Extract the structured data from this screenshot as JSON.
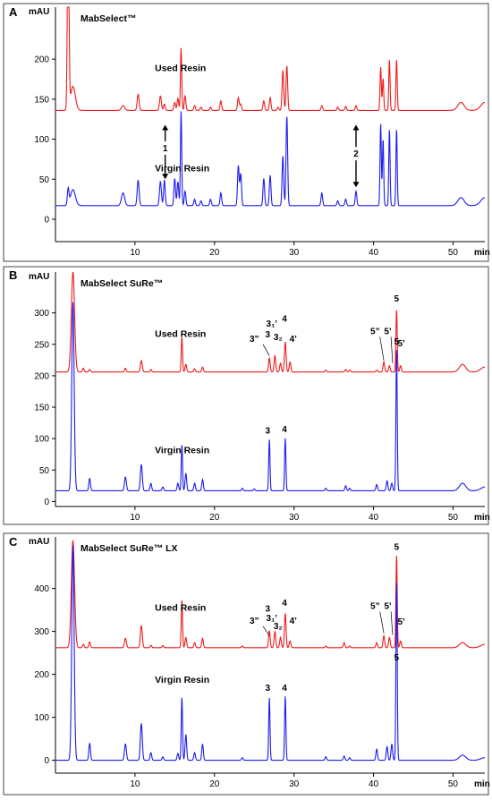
{
  "colors": {
    "used": "#ee1c1c",
    "virgin": "#1c1cee"
  },
  "chart_data": [
    {
      "type": "line",
      "panel": "A",
      "title": "MabSelect™",
      "ylabel": "mAU",
      "xlabel": "min",
      "xlim": [
        0,
        54
      ],
      "ylim": [
        -28,
        265
      ],
      "xticks": [
        10,
        20,
        30,
        40,
        50
      ],
      "yticks": [
        0,
        50,
        100,
        150,
        200
      ],
      "series": [
        {
          "name": "Used Resin",
          "color": "#ee1c1c",
          "baseline": 136,
          "label_x": 12.5,
          "label_y": 185,
          "peaks": [
            [
              1.6,
              250,
              0.1
            ],
            [
              2.2,
              30,
              0.3
            ],
            [
              8.5,
              6,
              0.2
            ],
            [
              10.4,
              20,
              0.12
            ],
            [
              13.2,
              18,
              0.12
            ],
            [
              13.7,
              8,
              0.1
            ],
            [
              15.0,
              10,
              0.1
            ],
            [
              15.4,
              15,
              0.1
            ],
            [
              15.8,
              78,
              0.08
            ],
            [
              16.3,
              18,
              0.1
            ],
            [
              17.5,
              6,
              0.1
            ],
            [
              18.3,
              4,
              0.1
            ],
            [
              19.5,
              4,
              0.1
            ],
            [
              20.8,
              12,
              0.1
            ],
            [
              23.0,
              16,
              0.1
            ],
            [
              23.3,
              8,
              0.1
            ],
            [
              26.2,
              12,
              0.1
            ],
            [
              27.0,
              16,
              0.1
            ],
            [
              28.0,
              4,
              0.1
            ],
            [
              28.6,
              50,
              0.1
            ],
            [
              29.1,
              56,
              0.1
            ],
            [
              33.5,
              6,
              0.1
            ],
            [
              35.5,
              4,
              0.1
            ],
            [
              36.5,
              5,
              0.1
            ],
            [
              37.8,
              6,
              0.1
            ],
            [
              40.9,
              54,
              0.08
            ],
            [
              41.2,
              40,
              0.08
            ],
            [
              42.0,
              64,
              0.08
            ],
            [
              42.9,
              64,
              0.08
            ],
            [
              51.0,
              10,
              0.4
            ],
            [
              54.0,
              10,
              0.5
            ]
          ]
        },
        {
          "name": "Virgin Resin",
          "color": "#1c1cee",
          "baseline": 17,
          "label_x": 12.5,
          "label_y": 60,
          "peaks": [
            [
              1.6,
              20,
              0.1
            ],
            [
              2.2,
              20,
              0.3
            ],
            [
              8.5,
              16,
              0.2
            ],
            [
              10.4,
              32,
              0.12
            ],
            [
              13.2,
              30,
              0.12
            ],
            [
              13.7,
              32,
              0.1
            ],
            [
              15.0,
              34,
              0.1
            ],
            [
              15.4,
              30,
              0.1
            ],
            [
              15.8,
              118,
              0.08
            ],
            [
              16.3,
              18,
              0.1
            ],
            [
              17.5,
              8,
              0.1
            ],
            [
              18.3,
              6,
              0.1
            ],
            [
              19.5,
              8,
              0.1
            ],
            [
              20.8,
              16,
              0.1
            ],
            [
              23.0,
              50,
              0.1
            ],
            [
              23.3,
              40,
              0.1
            ],
            [
              26.2,
              34,
              0.1
            ],
            [
              27.0,
              38,
              0.1
            ],
            [
              28.6,
              62,
              0.1
            ],
            [
              29.1,
              112,
              0.1
            ],
            [
              33.5,
              16,
              0.1
            ],
            [
              35.5,
              6,
              0.1
            ],
            [
              36.5,
              8,
              0.1
            ],
            [
              37.8,
              18,
              0.1
            ],
            [
              40.9,
              102,
              0.08
            ],
            [
              41.2,
              84,
              0.08
            ],
            [
              42.0,
              96,
              0.08
            ],
            [
              42.9,
              96,
              0.08
            ],
            [
              51.0,
              10,
              0.4
            ],
            [
              54.0,
              10,
              0.5
            ]
          ]
        }
      ],
      "annotations": [
        {
          "text": "1",
          "x": 13.8,
          "y_top": 118,
          "y_bottom": 50,
          "y_text": 85
        },
        {
          "text": "2",
          "x": 37.8,
          "y_top": 118,
          "y_bottom": 40,
          "y_text": 78
        }
      ]
    },
    {
      "type": "line",
      "panel": "B",
      "title": "MabSelect SuRe™",
      "ylabel": "mAU",
      "xlabel": "min",
      "xlim": [
        0,
        54
      ],
      "ylim": [
        -8,
        365
      ],
      "xticks": [
        10,
        20,
        30,
        40,
        50
      ],
      "yticks": [
        0,
        50,
        100,
        150,
        200,
        250,
        300
      ],
      "series": [
        {
          "name": "Used Resin",
          "color": "#ee1c1c",
          "baseline": 206,
          "label_x": 12.5,
          "label_y": 262,
          "peaks": [
            [
              2.2,
              160,
              0.2
            ],
            [
              3.5,
              6,
              0.1
            ],
            [
              4.3,
              4,
              0.1
            ],
            [
              8.8,
              6,
              0.1
            ],
            [
              10.8,
              18,
              0.12
            ],
            [
              12.0,
              4,
              0.1
            ],
            [
              15.9,
              56,
              0.08
            ],
            [
              16.4,
              12,
              0.1
            ],
            [
              17.5,
              5,
              0.1
            ],
            [
              18.5,
              8,
              0.1
            ],
            [
              26.9,
              22,
              0.1
            ],
            [
              27.6,
              26,
              0.1
            ],
            [
              28.3,
              14,
              0.1
            ],
            [
              28.9,
              48,
              0.1
            ],
            [
              29.5,
              16,
              0.1
            ],
            [
              34.0,
              3,
              0.1
            ],
            [
              36.5,
              4,
              0.1
            ],
            [
              37.0,
              3,
              0.1
            ],
            [
              40.4,
              3,
              0.1
            ],
            [
              41.3,
              16,
              0.1
            ],
            [
              42.0,
              10,
              0.1
            ],
            [
              42.9,
              100,
              0.08
            ],
            [
              43.4,
              10,
              0.1
            ],
            [
              51.2,
              12,
              0.4
            ],
            [
              54.0,
              8,
              0.5
            ]
          ]
        },
        {
          "name": "Virgin Resin",
          "color": "#1c1cee",
          "baseline": 17,
          "label_x": 12.5,
          "label_y": 77,
          "peaks": [
            [
              2.2,
              300,
              0.15
            ],
            [
              4.3,
              20,
              0.1
            ],
            [
              8.8,
              22,
              0.12
            ],
            [
              10.8,
              42,
              0.12
            ],
            [
              12.0,
              12,
              0.1
            ],
            [
              13.5,
              6,
              0.1
            ],
            [
              15.4,
              12,
              0.1
            ],
            [
              15.9,
              74,
              0.08
            ],
            [
              16.4,
              28,
              0.1
            ],
            [
              17.5,
              12,
              0.1
            ],
            [
              18.5,
              18,
              0.1
            ],
            [
              23.5,
              4,
              0.1
            ],
            [
              25.0,
              3,
              0.1
            ],
            [
              26.9,
              82,
              0.08
            ],
            [
              28.9,
              84,
              0.08
            ],
            [
              34.0,
              4,
              0.1
            ],
            [
              36.5,
              8,
              0.1
            ],
            [
              37.0,
              4,
              0.1
            ],
            [
              40.4,
              10,
              0.1
            ],
            [
              41.7,
              16,
              0.1
            ],
            [
              42.3,
              12,
              0.1
            ],
            [
              42.9,
              228,
              0.08
            ],
            [
              51.2,
              12,
              0.4
            ],
            [
              54.0,
              6,
              0.5
            ]
          ]
        }
      ],
      "peak_labels": [
        {
          "text": "3”",
          "x": 25.0,
          "y": 254,
          "leader": [
            26.1,
            250,
            26.9,
            232
          ]
        },
        {
          "text": "3",
          "x": 26.7,
          "y": 261
        },
        {
          "text": "3₁’",
          "x": 27.2,
          "y": 278
        },
        {
          "text": "3₂",
          "x": 28.0,
          "y": 257
        },
        {
          "text": "4",
          "x": 28.8,
          "y": 286
        },
        {
          "text": "4’",
          "x": 29.9,
          "y": 254
        },
        {
          "text": "5”",
          "x": 40.2,
          "y": 266,
          "leader": [
            40.8,
            262,
            41.3,
            224
          ]
        },
        {
          "text": "5’",
          "x": 41.8,
          "y": 266,
          "leader": [
            42.2,
            262,
            42.4,
            220
          ]
        },
        {
          "text": "5",
          "x": 42.9,
          "y": 318
        },
        {
          "text": "5’",
          "x": 43.5,
          "y": 247
        },
        {
          "text": "3",
          "x": 26.7,
          "y": 108
        },
        {
          "text": "4",
          "x": 28.8,
          "y": 110
        },
        {
          "text": "5",
          "x": 42.9,
          "y": 250
        }
      ]
    },
    {
      "type": "line",
      "panel": "C",
      "title": "MabSelect SuRe™ LX",
      "ylabel": "mAU",
      "xlabel": "min",
      "xlim": [
        0,
        54
      ],
      "ylim": [
        -30,
        520
      ],
      "xticks": [
        10,
        20,
        30,
        40,
        50
      ],
      "yticks": [
        0,
        100,
        200,
        300,
        400
      ],
      "series": [
        {
          "name": "Used Resin",
          "color": "#ee1c1c",
          "baseline": 262,
          "label_x": 12.5,
          "label_y": 348,
          "peaks": [
            [
              2.2,
              250,
              0.2
            ],
            [
              3.5,
              8,
              0.1
            ],
            [
              4.3,
              14,
              0.1
            ],
            [
              8.8,
              22,
              0.12
            ],
            [
              10.8,
              52,
              0.12
            ],
            [
              12.0,
              6,
              0.1
            ],
            [
              13.5,
              5,
              0.1
            ],
            [
              15.9,
              112,
              0.08
            ],
            [
              16.4,
              24,
              0.1
            ],
            [
              17.5,
              12,
              0.1
            ],
            [
              18.5,
              22,
              0.1
            ],
            [
              23.5,
              4,
              0.1
            ],
            [
              26.9,
              40,
              0.1
            ],
            [
              27.6,
              38,
              0.1
            ],
            [
              28.3,
              24,
              0.1
            ],
            [
              28.9,
              80,
              0.1
            ],
            [
              29.5,
              16,
              0.1
            ],
            [
              34.0,
              4,
              0.1
            ],
            [
              36.3,
              12,
              0.1
            ],
            [
              37.0,
              4,
              0.1
            ],
            [
              40.4,
              12,
              0.1
            ],
            [
              41.3,
              28,
              0.1
            ],
            [
              42.0,
              24,
              0.1
            ],
            [
              42.9,
              218,
              0.08
            ],
            [
              43.4,
              16,
              0.1
            ],
            [
              51.2,
              12,
              0.4
            ],
            [
              54.0,
              8,
              0.5
            ]
          ]
        },
        {
          "name": "Virgin Resin",
          "color": "#1c1cee",
          "baseline": 0,
          "label_x": 12.5,
          "label_y": 180,
          "peaks": [
            [
              2.2,
              500,
              0.15
            ],
            [
              4.3,
              40,
              0.1
            ],
            [
              8.8,
              38,
              0.12
            ],
            [
              10.8,
              86,
              0.12
            ],
            [
              12.0,
              18,
              0.1
            ],
            [
              13.5,
              8,
              0.1
            ],
            [
              15.4,
              16,
              0.1
            ],
            [
              15.9,
              148,
              0.08
            ],
            [
              16.4,
              60,
              0.1
            ],
            [
              17.5,
              18,
              0.1
            ],
            [
              18.5,
              38,
              0.1
            ],
            [
              23.5,
              6,
              0.1
            ],
            [
              26.9,
              146,
              0.08
            ],
            [
              28.9,
              150,
              0.08
            ],
            [
              34.0,
              8,
              0.1
            ],
            [
              36.3,
              10,
              0.1
            ],
            [
              37.0,
              6,
              0.1
            ],
            [
              40.4,
              26,
              0.1
            ],
            [
              41.7,
              32,
              0.1
            ],
            [
              42.3,
              38,
              0.1
            ],
            [
              42.9,
              420,
              0.08
            ],
            [
              51.2,
              12,
              0.4
            ],
            [
              54.0,
              6,
              0.5
            ]
          ]
        }
      ],
      "peak_labels": [
        {
          "text": "3”",
          "x": 25.0,
          "y": 318,
          "leader": [
            26.1,
            312,
            26.9,
            290
          ]
        },
        {
          "text": "3",
          "x": 26.7,
          "y": 346
        },
        {
          "text": "3₁’",
          "x": 27.2,
          "y": 324
        },
        {
          "text": "3₂",
          "x": 28.0,
          "y": 305
        },
        {
          "text": "4",
          "x": 28.8,
          "y": 360
        },
        {
          "text": "4’",
          "x": 29.9,
          "y": 318
        },
        {
          "text": "5”",
          "x": 40.2,
          "y": 352,
          "leader": [
            40.8,
            346,
            41.3,
            296
          ]
        },
        {
          "text": "5’",
          "x": 41.8,
          "y": 352,
          "leader": [
            42.2,
            346,
            42.4,
            292
          ]
        },
        {
          "text": "5",
          "x": 42.9,
          "y": 490
        },
        {
          "text": "5’",
          "x": 43.5,
          "y": 316
        },
        {
          "text": "3",
          "x": 26.7,
          "y": 162
        },
        {
          "text": "4",
          "x": 28.8,
          "y": 162
        },
        {
          "text": "5",
          "x": 42.9,
          "y": 232
        }
      ]
    }
  ]
}
